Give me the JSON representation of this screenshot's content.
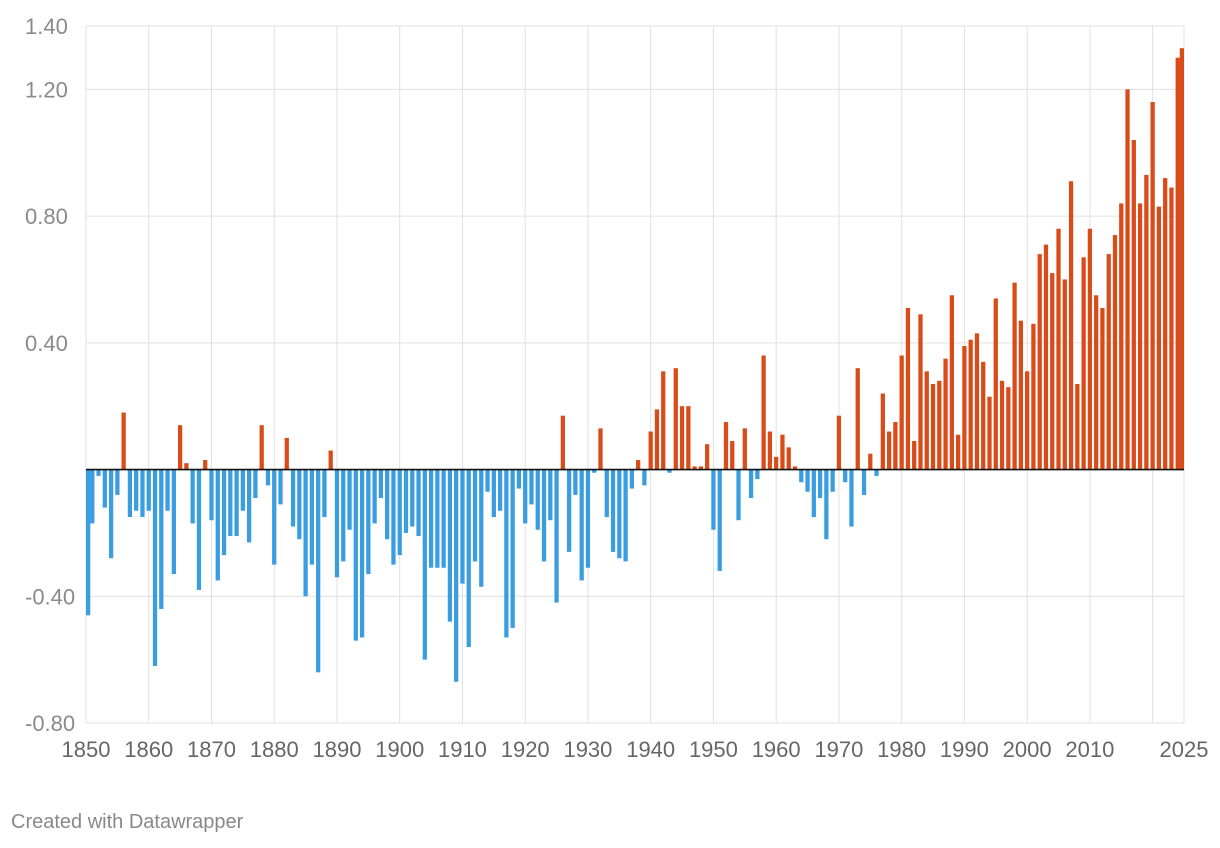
{
  "chart_data": {
    "type": "bar",
    "title": "",
    "xlabel": "",
    "ylabel": "",
    "ylim": [
      -0.8,
      1.4
    ],
    "xlim": [
      1850,
      2025
    ],
    "y_ticks": [
      {
        "value": 1.4,
        "label": "1.40"
      },
      {
        "value": 1.2,
        "label": "1.20"
      },
      {
        "value": 0.8,
        "label": "0.80"
      },
      {
        "value": 0.4,
        "label": "0.40"
      },
      {
        "value": -0.4,
        "label": "-0.40"
      },
      {
        "value": -0.8,
        "label": "-0.80"
      }
    ],
    "x_ticks": [
      1850,
      1860,
      1870,
      1880,
      1890,
      1900,
      1910,
      1920,
      1930,
      1940,
      1950,
      1960,
      1970,
      1980,
      1990,
      2000,
      2010,
      2025
    ],
    "x_tick_labels": [
      "1850",
      "1860",
      "1870",
      "1880",
      "1890",
      "1900",
      "1910",
      "1920",
      "1930",
      "1940",
      "1950",
      "1960",
      "1970",
      "1980",
      "1990",
      "2000",
      "2010",
      "2025"
    ],
    "extra_gridlines_x": [
      2020
    ],
    "colors": {
      "positive": "#d94c1a",
      "negative": "#3a9de0",
      "zero_line": "#111111",
      "grid": "#e0e0e0"
    },
    "years": [
      1850,
      1851,
      1852,
      1853,
      1854,
      1855,
      1856,
      1857,
      1858,
      1859,
      1860,
      1861,
      1862,
      1863,
      1864,
      1865,
      1866,
      1867,
      1868,
      1869,
      1870,
      1871,
      1872,
      1873,
      1874,
      1875,
      1876,
      1877,
      1878,
      1879,
      1880,
      1881,
      1882,
      1883,
      1884,
      1885,
      1886,
      1887,
      1888,
      1889,
      1890,
      1891,
      1892,
      1893,
      1894,
      1895,
      1896,
      1897,
      1898,
      1899,
      1900,
      1901,
      1902,
      1903,
      1904,
      1905,
      1906,
      1907,
      1908,
      1909,
      1910,
      1911,
      1912,
      1913,
      1914,
      1915,
      1916,
      1917,
      1918,
      1919,
      1920,
      1921,
      1922,
      1923,
      1924,
      1925,
      1926,
      1927,
      1928,
      1929,
      1930,
      1931,
      1932,
      1933,
      1934,
      1935,
      1936,
      1937,
      1938,
      1939,
      1940,
      1941,
      1942,
      1943,
      1944,
      1945,
      1946,
      1947,
      1948,
      1949,
      1950,
      1951,
      1952,
      1953,
      1954,
      1955,
      1956,
      1957,
      1958,
      1959,
      1960,
      1961,
      1962,
      1963,
      1964,
      1965,
      1966,
      1967,
      1968,
      1969,
      1970,
      1971,
      1972,
      1973,
      1974,
      1975,
      1976,
      1977,
      1978,
      1979,
      1980,
      1981,
      1982,
      1983,
      1984,
      1985,
      1986,
      1987,
      1988,
      1989,
      1990,
      1991,
      1992,
      1993,
      1994,
      1995,
      1996,
      1997,
      1998,
      1999,
      2000,
      2001,
      2002,
      2003,
      2004,
      2005,
      2006,
      2007,
      2008,
      2009,
      2010,
      2011,
      2012,
      2013,
      2014,
      2015,
      2016,
      2017,
      2018,
      2019,
      2020,
      2021,
      2022,
      2023,
      2024,
      2025
    ],
    "values": [
      -0.46,
      -0.17,
      -0.02,
      -0.12,
      -0.28,
      -0.08,
      0.18,
      -0.15,
      -0.13,
      -0.15,
      -0.13,
      -0.62,
      -0.44,
      -0.13,
      -0.33,
      0.14,
      0.02,
      -0.17,
      -0.38,
      0.03,
      -0.16,
      -0.35,
      -0.27,
      -0.21,
      -0.21,
      -0.13,
      -0.23,
      -0.09,
      0.14,
      -0.05,
      -0.3,
      -0.11,
      0.1,
      -0.18,
      -0.22,
      -0.4,
      -0.3,
      -0.64,
      -0.15,
      0.06,
      -0.34,
      -0.29,
      -0.19,
      -0.54,
      -0.53,
      -0.33,
      -0.17,
      -0.09,
      -0.22,
      -0.3,
      -0.27,
      -0.2,
      -0.18,
      -0.21,
      -0.6,
      -0.31,
      -0.31,
      -0.31,
      -0.48,
      -0.67,
      -0.36,
      -0.56,
      -0.29,
      -0.37,
      -0.07,
      -0.15,
      -0.13,
      -0.53,
      -0.5,
      -0.06,
      -0.17,
      -0.11,
      -0.19,
      -0.29,
      -0.16,
      -0.42,
      0.17,
      -0.26,
      -0.08,
      -0.35,
      -0.31,
      -0.01,
      0.13,
      -0.15,
      -0.26,
      -0.28,
      -0.29,
      -0.06,
      0.03,
      -0.05,
      0.12,
      0.19,
      0.31,
      -0.01,
      0.32,
      0.2,
      0.2,
      0.01,
      0.01,
      0.08,
      -0.19,
      -0.32,
      0.15,
      0.09,
      -0.16,
      0.13,
      -0.09,
      -0.03,
      0.36,
      0.12,
      0.04,
      0.11,
      0.07,
      0.01,
      -0.04,
      -0.07,
      -0.15,
      -0.09,
      -0.22,
      -0.07,
      0.17,
      -0.04,
      -0.18,
      0.32,
      -0.08,
      0.05,
      -0.02,
      0.24,
      0.12,
      0.15,
      0.36,
      0.51,
      0.09,
      0.49,
      0.31,
      0.27,
      0.28,
      0.35,
      0.55,
      0.11,
      0.39,
      0.41,
      0.43,
      0.34,
      0.23,
      0.54,
      0.28,
      0.26,
      0.59,
      0.47,
      0.31,
      0.46,
      0.68,
      0.71,
      0.62,
      0.76,
      0.6,
      0.91,
      0.27,
      0.67,
      0.76,
      0.55,
      0.51,
      0.68,
      0.74,
      0.84,
      1.2,
      1.04,
      0.84,
      0.93,
      1.16,
      0.83,
      0.92,
      0.89,
      1.3,
      1.33
    ]
  },
  "footer": {
    "credit": "Created with Datawrapper"
  }
}
